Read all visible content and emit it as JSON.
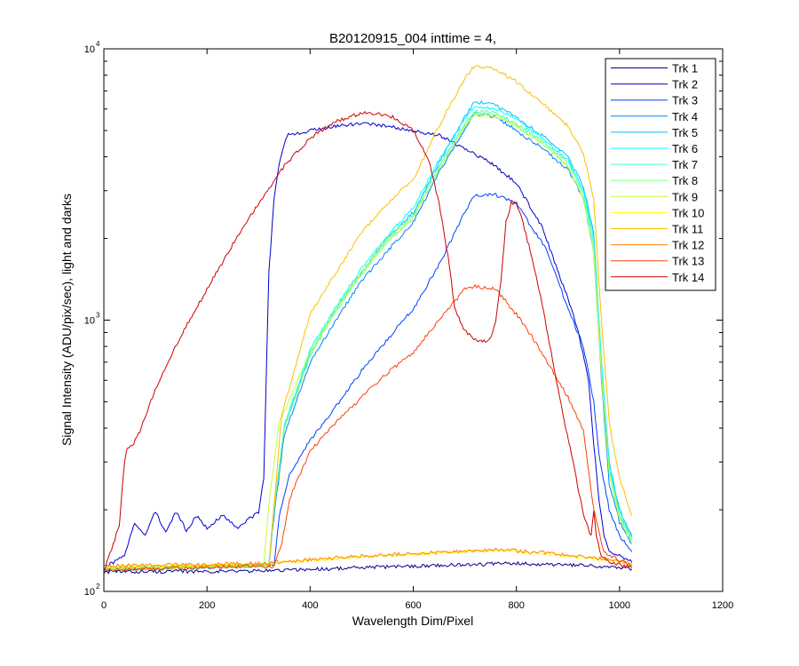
{
  "chart_data": {
    "type": "line",
    "title": "B20120915_004 inttime = 4,",
    "xlabel": "Wavelength Dim/Pixel",
    "ylabel": "Signal Intensity (ADU/pix/sec), light and darks",
    "xlim": [
      0,
      1200
    ],
    "ylim": [
      100,
      10000
    ],
    "yscale": "log",
    "xticks": [
      0,
      200,
      400,
      600,
      800,
      1000,
      1200
    ],
    "yticks": [
      {
        "value": 100,
        "base": "10",
        "exp": "2"
      },
      {
        "value": 1000,
        "base": "10",
        "exp": "3"
      },
      {
        "value": 10000,
        "base": "10",
        "exp": "4"
      }
    ],
    "grid": false,
    "legend_position": "top-right",
    "series": [
      {
        "name": "Trk 1",
        "color": "#00008f",
        "points": [
          [
            0,
            118
          ],
          [
            300,
            119
          ],
          [
            600,
            124
          ],
          [
            800,
            127
          ],
          [
            950,
            124
          ],
          [
            1024,
            121
          ]
        ]
      },
      {
        "name": "Trk 2",
        "color": "#0000cf",
        "points": [
          [
            0,
            122
          ],
          [
            40,
            135
          ],
          [
            60,
            180
          ],
          [
            80,
            160
          ],
          [
            100,
            198
          ],
          [
            120,
            165
          ],
          [
            140,
            196
          ],
          [
            160,
            168
          ],
          [
            180,
            190
          ],
          [
            200,
            172
          ],
          [
            230,
            190
          ],
          [
            260,
            172
          ],
          [
            280,
            185
          ],
          [
            300,
            195
          ],
          [
            310,
            260
          ],
          [
            320,
            1500
          ],
          [
            330,
            2800
          ],
          [
            340,
            3800
          ],
          [
            355,
            4800
          ],
          [
            400,
            5000
          ],
          [
            450,
            5200
          ],
          [
            500,
            5300
          ],
          [
            550,
            5200
          ],
          [
            600,
            5000
          ],
          [
            650,
            4800
          ],
          [
            700,
            4300
          ],
          [
            750,
            3800
          ],
          [
            800,
            3200
          ],
          [
            850,
            2200
          ],
          [
            900,
            1200
          ],
          [
            920,
            900
          ],
          [
            940,
            600
          ],
          [
            950,
            350
          ],
          [
            960,
            220
          ],
          [
            970,
            160
          ],
          [
            980,
            140
          ],
          [
            1000,
            135
          ],
          [
            1024,
            128
          ]
        ]
      },
      {
        "name": "Trk 3",
        "color": "#0040ff",
        "points": [
          [
            0,
            120
          ],
          [
            330,
            125
          ],
          [
            340,
            190
          ],
          [
            360,
            270
          ],
          [
            400,
            360
          ],
          [
            450,
            480
          ],
          [
            500,
            650
          ],
          [
            550,
            850
          ],
          [
            600,
            1100
          ],
          [
            650,
            1600
          ],
          [
            700,
            2500
          ],
          [
            720,
            2900
          ],
          [
            760,
            2900
          ],
          [
            800,
            2700
          ],
          [
            830,
            2200
          ],
          [
            860,
            1800
          ],
          [
            900,
            1100
          ],
          [
            930,
            800
          ],
          [
            950,
            500
          ],
          [
            960,
            320
          ],
          [
            980,
            200
          ],
          [
            1000,
            160
          ],
          [
            1024,
            140
          ]
        ]
      },
      {
        "name": "Trk 4",
        "color": "#0080ff",
        "points": [
          [
            0,
            121
          ],
          [
            320,
            125
          ],
          [
            330,
            190
          ],
          [
            350,
            380
          ],
          [
            400,
            700
          ],
          [
            450,
            1000
          ],
          [
            500,
            1400
          ],
          [
            550,
            1800
          ],
          [
            600,
            2300
          ],
          [
            650,
            3500
          ],
          [
            700,
            5100
          ],
          [
            720,
            5800
          ],
          [
            760,
            5600
          ],
          [
            800,
            5000
          ],
          [
            850,
            4300
          ],
          [
            900,
            3600
          ],
          [
            930,
            2800
          ],
          [
            950,
            1800
          ],
          [
            965,
            600
          ],
          [
            980,
            250
          ],
          [
            1000,
            180
          ],
          [
            1024,
            150
          ]
        ]
      },
      {
        "name": "Trk 5",
        "color": "#00bfff",
        "points": [
          [
            0,
            121
          ],
          [
            320,
            125
          ],
          [
            330,
            200
          ],
          [
            350,
            400
          ],
          [
            400,
            750
          ],
          [
            450,
            1100
          ],
          [
            500,
            1500
          ],
          [
            550,
            2000
          ],
          [
            600,
            2500
          ],
          [
            650,
            3800
          ],
          [
            700,
            5600
          ],
          [
            720,
            6400
          ],
          [
            760,
            6200
          ],
          [
            800,
            5600
          ],
          [
            850,
            4800
          ],
          [
            900,
            4000
          ],
          [
            930,
            3100
          ],
          [
            950,
            2100
          ],
          [
            965,
            700
          ],
          [
            980,
            300
          ],
          [
            1000,
            200
          ],
          [
            1024,
            160
          ]
        ]
      },
      {
        "name": "Trk 6",
        "color": "#00ffff",
        "points": [
          [
            0,
            121
          ],
          [
            320,
            125
          ],
          [
            330,
            205
          ],
          [
            350,
            410
          ],
          [
            400,
            780
          ],
          [
            450,
            1120
          ],
          [
            500,
            1550
          ],
          [
            550,
            2050
          ],
          [
            600,
            2600
          ],
          [
            650,
            3900
          ],
          [
            700,
            5500
          ],
          [
            720,
            6200
          ],
          [
            760,
            6000
          ],
          [
            800,
            5500
          ],
          [
            850,
            4700
          ],
          [
            900,
            3900
          ],
          [
            930,
            3000
          ],
          [
            950,
            2000
          ],
          [
            965,
            700
          ],
          [
            980,
            290
          ],
          [
            1000,
            195
          ],
          [
            1024,
            158
          ]
        ]
      },
      {
        "name": "Trk 7",
        "color": "#40ffbf",
        "points": [
          [
            0,
            121
          ],
          [
            320,
            125
          ],
          [
            330,
            205
          ],
          [
            350,
            405
          ],
          [
            400,
            760
          ],
          [
            450,
            1100
          ],
          [
            500,
            1500
          ],
          [
            550,
            2000
          ],
          [
            600,
            2450
          ],
          [
            650,
            3700
          ],
          [
            700,
            5300
          ],
          [
            720,
            5900
          ],
          [
            760,
            5800
          ],
          [
            800,
            5300
          ],
          [
            850,
            4600
          ],
          [
            900,
            3800
          ],
          [
            930,
            2900
          ],
          [
            950,
            1900
          ],
          [
            965,
            650
          ],
          [
            980,
            280
          ],
          [
            1000,
            190
          ],
          [
            1024,
            155
          ]
        ]
      },
      {
        "name": "Trk 8",
        "color": "#80ff80",
        "points": [
          [
            0,
            121
          ],
          [
            320,
            125
          ],
          [
            330,
            200
          ],
          [
            350,
            400
          ],
          [
            400,
            740
          ],
          [
            450,
            1080
          ],
          [
            500,
            1480
          ],
          [
            550,
            1950
          ],
          [
            600,
            2400
          ],
          [
            650,
            3600
          ],
          [
            700,
            5200
          ],
          [
            720,
            5800
          ],
          [
            760,
            5700
          ],
          [
            800,
            5200
          ],
          [
            850,
            4500
          ],
          [
            900,
            3700
          ],
          [
            930,
            2800
          ],
          [
            950,
            1850
          ],
          [
            965,
            640
          ],
          [
            980,
            275
          ],
          [
            1000,
            188
          ],
          [
            1024,
            153
          ]
        ]
      },
      {
        "name": "Trk 9",
        "color": "#bfff40",
        "points": [
          [
            0,
            121
          ],
          [
            310,
            125
          ],
          [
            320,
            210
          ],
          [
            340,
            420
          ],
          [
            400,
            760
          ],
          [
            450,
            1090
          ],
          [
            500,
            1500
          ],
          [
            550,
            1980
          ],
          [
            600,
            2380
          ],
          [
            650,
            3600
          ],
          [
            700,
            5200
          ],
          [
            720,
            5700
          ],
          [
            760,
            5650
          ],
          [
            800,
            5200
          ],
          [
            850,
            4500
          ],
          [
            900,
            3700
          ],
          [
            930,
            2800
          ],
          [
            950,
            1800
          ],
          [
            965,
            630
          ],
          [
            980,
            270
          ],
          [
            1000,
            185
          ],
          [
            1024,
            150
          ]
        ]
      },
      {
        "name": "Trk 10",
        "color": "#ffff00",
        "points": [
          [
            0,
            123
          ],
          [
            300,
            126
          ],
          [
            500,
            134
          ],
          [
            700,
            140
          ],
          [
            760,
            142
          ],
          [
            850,
            138
          ],
          [
            950,
            132
          ],
          [
            1024,
            126
          ]
        ]
      },
      {
        "name": "Trk 11",
        "color": "#ffbf00",
        "points": [
          [
            0,
            121
          ],
          [
            320,
            125
          ],
          [
            330,
            210
          ],
          [
            345,
            450
          ],
          [
            400,
            1050
          ],
          [
            450,
            1500
          ],
          [
            500,
            2100
          ],
          [
            550,
            2700
          ],
          [
            600,
            3300
          ],
          [
            650,
            5200
          ],
          [
            700,
            7800
          ],
          [
            720,
            8700
          ],
          [
            760,
            8400
          ],
          [
            800,
            7600
          ],
          [
            850,
            6300
          ],
          [
            900,
            5200
          ],
          [
            930,
            4100
          ],
          [
            950,
            2800
          ],
          [
            965,
            1000
          ],
          [
            980,
            420
          ],
          [
            1000,
            260
          ],
          [
            1024,
            190
          ]
        ]
      },
      {
        "name": "Trk 12",
        "color": "#ff8000",
        "points": [
          [
            0,
            124
          ],
          [
            300,
            127
          ],
          [
            500,
            135
          ],
          [
            700,
            141
          ],
          [
            760,
            143
          ],
          [
            850,
            139
          ],
          [
            950,
            133
          ],
          [
            1024,
            127
          ]
        ]
      },
      {
        "name": "Trk 13",
        "color": "#ff4000",
        "points": [
          [
            0,
            120
          ],
          [
            330,
            124
          ],
          [
            345,
            150
          ],
          [
            360,
            220
          ],
          [
            400,
            330
          ],
          [
            450,
            420
          ],
          [
            500,
            520
          ],
          [
            550,
            640
          ],
          [
            600,
            760
          ],
          [
            650,
            1000
          ],
          [
            700,
            1300
          ],
          [
            720,
            1330
          ],
          [
            760,
            1300
          ],
          [
            800,
            1050
          ],
          [
            830,
            870
          ],
          [
            860,
            700
          ],
          [
            900,
            520
          ],
          [
            930,
            390
          ],
          [
            950,
            200
          ],
          [
            970,
            140
          ],
          [
            1000,
            130
          ],
          [
            1024,
            125
          ]
        ]
      },
      {
        "name": "Trk 14",
        "color": "#cf0000",
        "points": [
          [
            0,
            118
          ],
          [
            30,
            175
          ],
          [
            35,
            230
          ],
          [
            40,
            300
          ],
          [
            45,
            335
          ],
          [
            55,
            345
          ],
          [
            70,
            390
          ],
          [
            100,
            560
          ],
          [
            150,
            880
          ],
          [
            200,
            1300
          ],
          [
            250,
            1900
          ],
          [
            300,
            2700
          ],
          [
            350,
            3700
          ],
          [
            400,
            4700
          ],
          [
            450,
            5400
          ],
          [
            500,
            5800
          ],
          [
            530,
            5800
          ],
          [
            560,
            5600
          ],
          [
            600,
            5000
          ],
          [
            630,
            3900
          ],
          [
            650,
            2700
          ],
          [
            670,
            1600
          ],
          [
            680,
            1100
          ],
          [
            700,
            910
          ],
          [
            720,
            850
          ],
          [
            740,
            830
          ],
          [
            750,
            850
          ],
          [
            760,
            1000
          ],
          [
            770,
            1400
          ],
          [
            780,
            2300
          ],
          [
            790,
            2700
          ],
          [
            800,
            2700
          ],
          [
            810,
            2400
          ],
          [
            830,
            1700
          ],
          [
            850,
            1150
          ],
          [
            870,
            720
          ],
          [
            890,
            450
          ],
          [
            910,
            300
          ],
          [
            930,
            190
          ],
          [
            945,
            160
          ],
          [
            950,
            200
          ],
          [
            955,
            160
          ],
          [
            965,
            135
          ],
          [
            980,
            128
          ],
          [
            1000,
            126
          ],
          [
            1024,
            122
          ]
        ]
      }
    ]
  }
}
